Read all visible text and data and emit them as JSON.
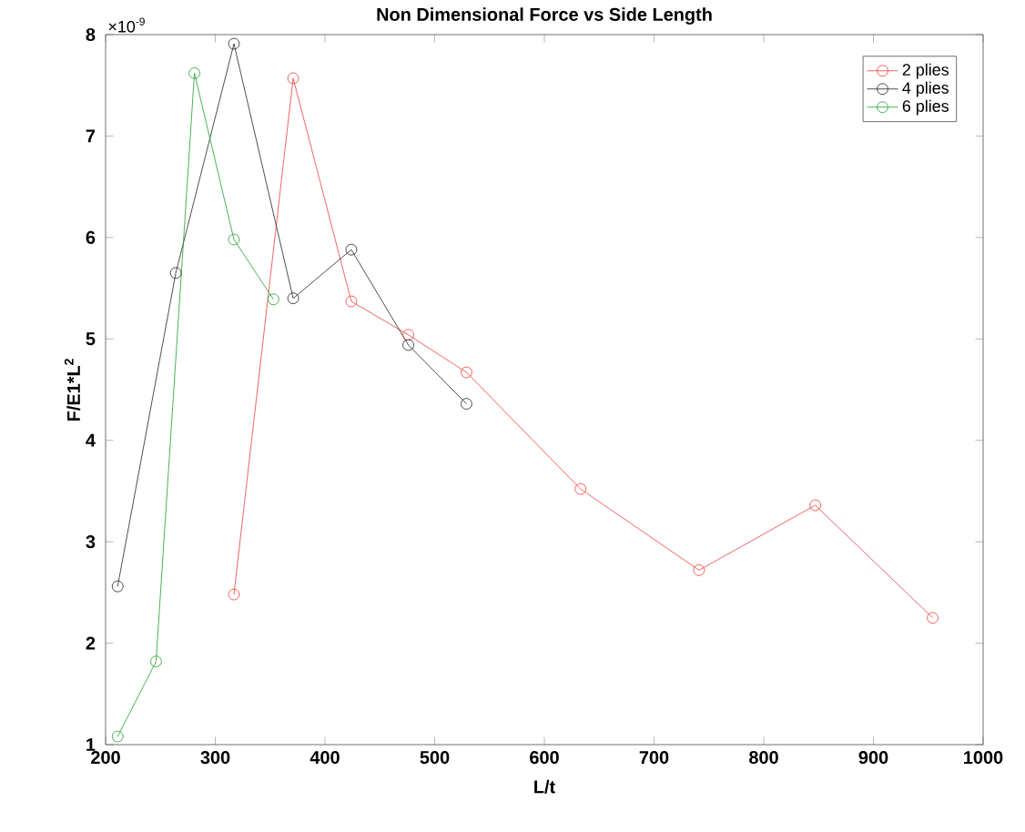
{
  "chart_data": {
    "type": "line",
    "title": "Non Dimensional Force vs Side Length",
    "xlabel": "L/t",
    "ylabel": "F/E1*L$^{2}$",
    "annotations": [
      "×10$^{-9}$"
    ],
    "xlim": [
      200,
      1000
    ],
    "xticks": [
      200,
      300,
      400,
      500,
      600,
      700,
      800,
      900,
      1000
    ],
    "ylim": [
      1,
      8
    ],
    "yticks": [
      1,
      2,
      3,
      4,
      5,
      6,
      7,
      8
    ],
    "grid": false,
    "legend": "top right",
    "marker": "circle",
    "line_style": "solid",
    "series": [
      {
        "name": "2 plies",
        "color": "#f03c3c",
        "x": [
          317,
          371,
          424,
          476,
          529,
          633,
          741,
          847,
          954
        ],
        "values": [
          2.48,
          7.57,
          5.37,
          5.04,
          4.67,
          3.52,
          2.72,
          3.36,
          2.25
        ]
      },
      {
        "name": "4 plies",
        "color": "#222222",
        "x": [
          211,
          264,
          317,
          371,
          424,
          476,
          529
        ],
        "values": [
          2.56,
          5.65,
          7.91,
          5.4,
          5.88,
          4.94,
          4.36
        ]
      },
      {
        "name": "6 plies",
        "color": "#1f9e2f",
        "x": [
          211,
          246,
          281,
          317,
          353
        ],
        "values": [
          1.08,
          1.82,
          7.62,
          5.98,
          5.39
        ]
      }
    ]
  }
}
